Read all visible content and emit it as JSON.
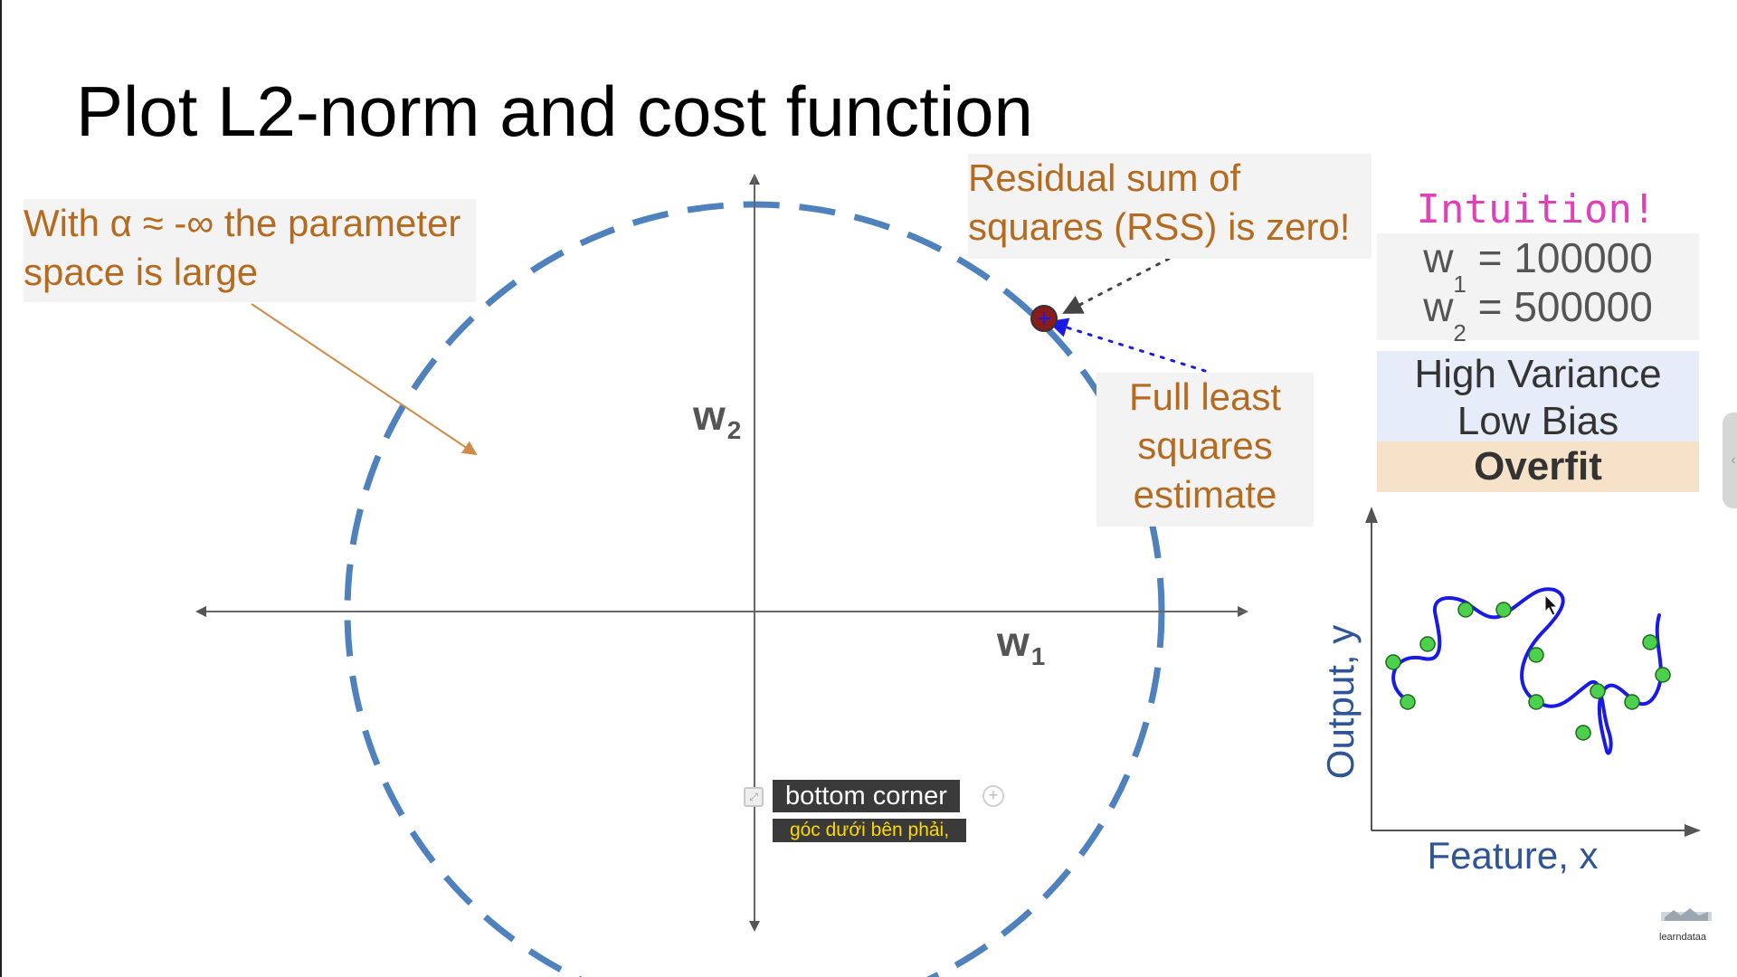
{
  "slide": {
    "title": "Plot L2-norm and cost function"
  },
  "annotations": {
    "left_note_line1": "With α ≈ -∞ the parameter",
    "left_note_line2": "space is large",
    "rss_line1": "Residual sum of",
    "rss_line2": "squares (RSS) is zero!",
    "fls_line1": "Full least",
    "fls_line2": "squares",
    "fls_line3": "estimate"
  },
  "axes": {
    "w2_main": "w",
    "w2_sub": "2",
    "w1_main": "w",
    "w1_sub": "1"
  },
  "intuition": {
    "heading": "Intuition!",
    "w1_label": "w",
    "w1_sub": "1",
    "w1_value": " = 100000",
    "w2_label": "w",
    "w2_sub": "2",
    "w2_value": " = 500000",
    "variance": "High Variance",
    "bias": "Low Bias",
    "verdict": "Overfit"
  },
  "mini_plot": {
    "xlabel": "Feature, x",
    "ylabel": "Output, y"
  },
  "captions": {
    "english": "bottom corner",
    "vietnamese": "góc dưới bên phải,"
  },
  "logo": {
    "text": "learndataa"
  },
  "colors": {
    "circle": "#4f81bd",
    "note_text": "#b46a1f",
    "intuition": "#e040b8",
    "fit_curve": "#1a1ae6",
    "data_points": "#4dd04d",
    "axis_label": "#2f5597"
  },
  "icons": {
    "caption_expand": "expand-icon",
    "caption_add": "plus-circle-icon",
    "side_handle": "chevron-left-icon"
  }
}
